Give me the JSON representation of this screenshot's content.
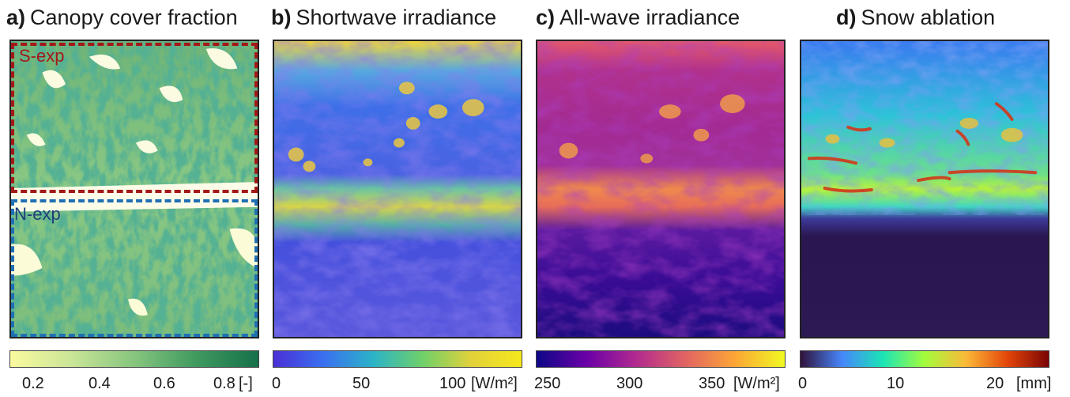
{
  "chart_data": [
    {
      "type": "heatmap",
      "panel_letter": "a)",
      "title": "Canopy cover fraction",
      "colormap": [
        "#fafa9e",
        "#c9e597",
        "#86c57e",
        "#3f9a5f",
        "#16704a"
      ],
      "colorbar": {
        "ticks": [
          "0.2",
          "0.4",
          "0.6",
          "0.8"
        ],
        "unit": "[-]"
      },
      "region_labels": [
        "S-exp",
        "N-exp"
      ],
      "region_colors": [
        "#a31818",
        "#1f6fb5"
      ]
    },
    {
      "type": "heatmap",
      "panel_letter": "b)",
      "title": "Shortwave irradiance",
      "colormap": [
        "#4a2fd6",
        "#3a6ff0",
        "#2bb3c8",
        "#6fd06a",
        "#e3d13a",
        "#f5e81c"
      ],
      "colorbar": {
        "ticks": [
          "0",
          "50",
          "100"
        ],
        "unit": "[W/m²]"
      }
    },
    {
      "type": "heatmap",
      "panel_letter": "c)",
      "title": "All-wave irradiance",
      "colormap": [
        "#0d0887",
        "#6a00a8",
        "#b12a90",
        "#e16462",
        "#fca636",
        "#f0f921"
      ],
      "colorbar": {
        "ticks": [
          "250",
          "300",
          "350"
        ],
        "unit": "[W/m²]"
      }
    },
    {
      "type": "heatmap",
      "panel_letter": "d)",
      "title": "Snow ablation",
      "colormap": [
        "#30123b",
        "#4686fb",
        "#1be5b5",
        "#a4fc3c",
        "#fbb938",
        "#e4460a",
        "#7a0403"
      ],
      "colorbar": {
        "ticks": [
          "0",
          "10",
          "20"
        ],
        "unit": "[mm]"
      }
    }
  ]
}
